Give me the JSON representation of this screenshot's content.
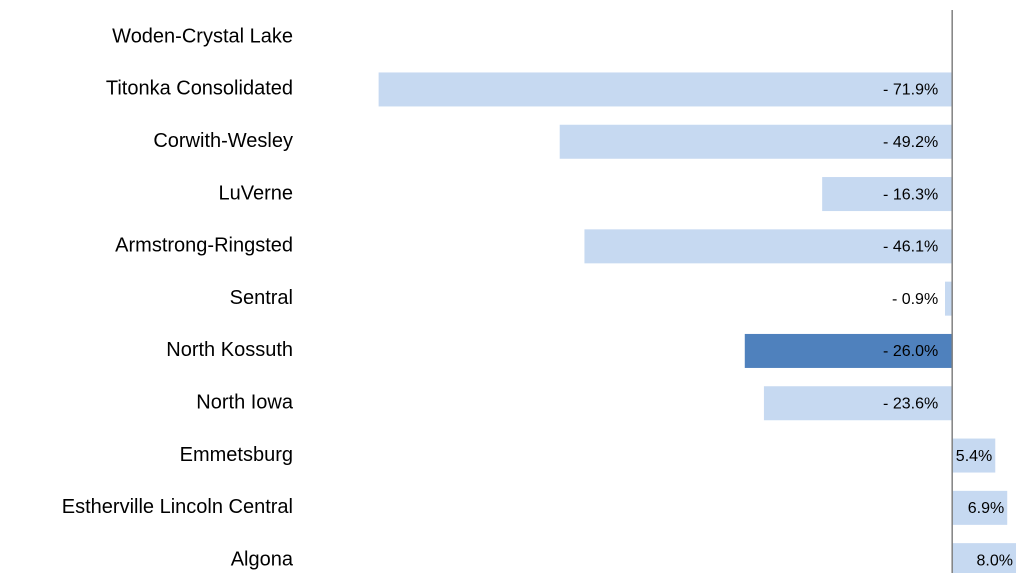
{
  "chart_data": {
    "type": "bar",
    "orientation": "horizontal",
    "categories": [
      "Woden-Crystal Lake",
      "Titonka Consolidated",
      "Corwith-Wesley",
      "LuVerne",
      "Armstrong-Ringsted",
      "Sentral",
      "North Kossuth",
      "North Iowa",
      "Emmetsburg",
      "Estherville Lincoln Central",
      "Algona"
    ],
    "values": [
      null,
      -71.9,
      -49.2,
      -16.3,
      -46.1,
      -0.9,
      -26.0,
      -23.6,
      5.4,
      6.9,
      8.0
    ],
    "value_labels": [
      null,
      "- 71.9%",
      "- 49.2%",
      "- 16.3%",
      "- 46.1%",
      "- 0.9%",
      "- 26.0%",
      "- 23.6%",
      "5.4%",
      "6.9%",
      "8.0%"
    ],
    "colors": [
      "#c6d9f1",
      "#c6d9f1",
      "#c6d9f1",
      "#c6d9f1",
      "#c6d9f1",
      "#c6d9f1",
      "#4f81bd",
      "#c6d9f1",
      "#c6d9f1",
      "#c6d9f1",
      "#c6d9f1"
    ],
    "xlim": [
      -80,
      8.5
    ]
  }
}
